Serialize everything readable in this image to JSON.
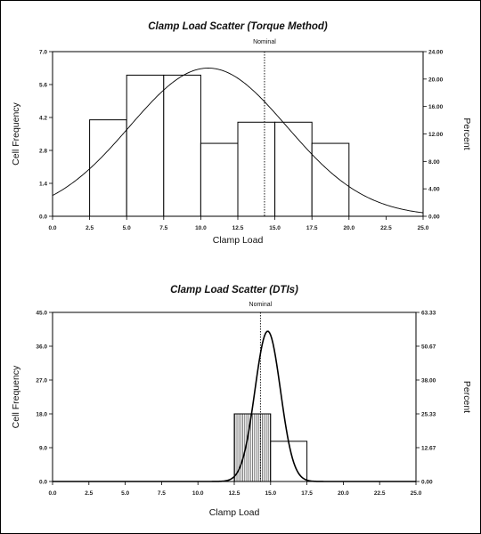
{
  "chart_data": [
    {
      "type": "bar",
      "title": "Clamp Load Scatter (Torque Method)",
      "xlabel": "Clamp Load",
      "ylabel": "Cell Frequency",
      "y2label": "Percent",
      "xlim": [
        0,
        25
      ],
      "ylim": [
        0,
        7.0
      ],
      "y2lim": [
        0,
        24.0
      ],
      "x_ticks": [
        "0.0",
        "2.5",
        "5.0",
        "7.5",
        "10.0",
        "12.5",
        "15.0",
        "17.5",
        "20.0",
        "22.5",
        "25.0"
      ],
      "y_ticks": [
        "0.0",
        "1.4",
        "2.8",
        "4.2",
        "5.6",
        "7.0"
      ],
      "y2_ticks": [
        "0.00",
        "4.00",
        "8.00",
        "12.00",
        "16.00",
        "20.00",
        "24.00"
      ],
      "bins": [
        {
          "start": 2.5,
          "end": 5.0,
          "value": 4.1
        },
        {
          "start": 5.0,
          "end": 7.5,
          "value": 6.0
        },
        {
          "start": 7.5,
          "end": 10.0,
          "value": 6.0
        },
        {
          "start": 10.0,
          "end": 12.5,
          "value": 3.1
        },
        {
          "start": 12.5,
          "end": 15.0,
          "value": 4.0
        },
        {
          "start": 15.0,
          "end": 17.5,
          "value": 4.0
        },
        {
          "start": 17.5,
          "end": 20.0,
          "value": 3.1
        }
      ],
      "curve": {
        "mean": 10.5,
        "sd": 5.3,
        "peak": 6.3
      },
      "reference": {
        "label": "Nominal",
        "x": 14.3
      }
    },
    {
      "type": "bar",
      "title": "Clamp Load Scatter (DTIs)",
      "xlabel": "Clamp Load",
      "ylabel": "Cell Frequency",
      "y2label": "Percent",
      "xlim": [
        0,
        25
      ],
      "ylim": [
        0,
        45.0
      ],
      "y2lim": [
        0,
        63.33
      ],
      "x_ticks": [
        "0.0",
        "2.5",
        "5.0",
        "7.5",
        "10.0",
        "12.5",
        "15.0",
        "17.5",
        "20.0",
        "22.5",
        "25.0"
      ],
      "y_ticks": [
        "0.0",
        "9.0",
        "18.0",
        "27.0",
        "36.0",
        "45.0"
      ],
      "y2_ticks": [
        "0.00",
        "12.67",
        "25.33",
        "38.00",
        "50.67",
        "63.33"
      ],
      "bins": [
        {
          "start": 12.5,
          "end": 15.0,
          "value": 18.0,
          "hatched": true
        },
        {
          "start": 15.0,
          "end": 17.5,
          "value": 10.7,
          "hatched": false
        }
      ],
      "curve": {
        "mean": 14.8,
        "sd": 0.88,
        "peak": 40.0
      },
      "reference": {
        "label": "Nominal",
        "x": 14.3
      }
    }
  ]
}
